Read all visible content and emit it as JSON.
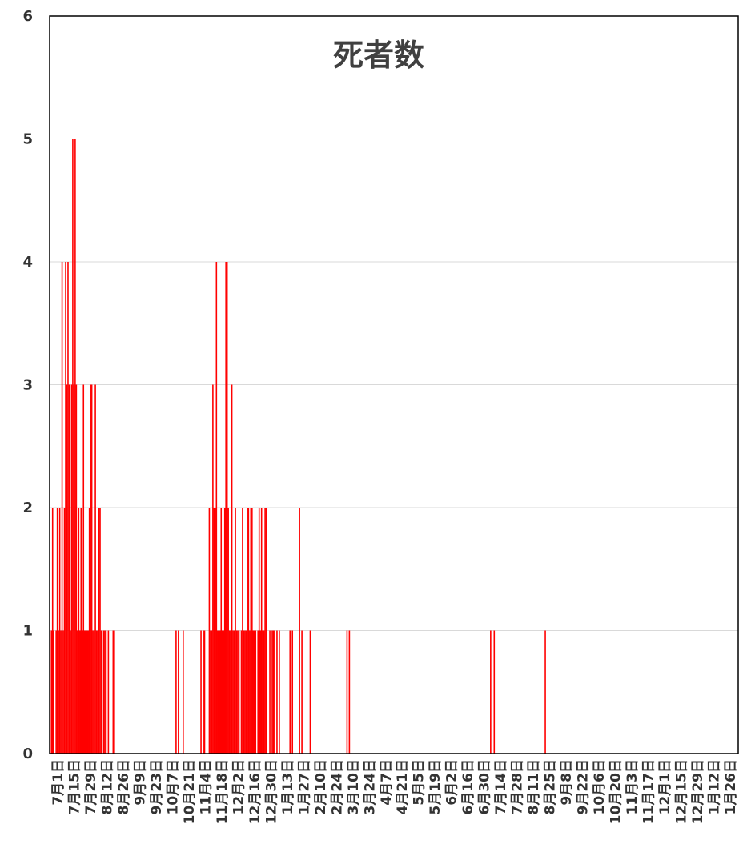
{
  "chart_data": {
    "type": "bar",
    "title": "死者数",
    "xlabel": "",
    "ylabel": "",
    "ylim": [
      0,
      6
    ],
    "yticks": [
      0,
      1,
      2,
      3,
      4,
      5,
      6
    ],
    "grid": true,
    "legend": "none",
    "series_color": "#ff0000",
    "grid_color": "#d9d9d9",
    "date_range": [
      "2020-07-01",
      "2022-01-31"
    ],
    "xtick_labels": [
      "7月1日",
      "7月15日",
      "7月29日",
      "8月12日",
      "8月26日",
      "9月9日",
      "9月23日",
      "10月7日",
      "10月21日",
      "11月4日",
      "11月18日",
      "12月2日",
      "12月16日",
      "12月30日",
      "1月13日",
      "1月27日",
      "2月10日",
      "2月24日",
      "3月10日",
      "3月24日",
      "4月7日",
      "4月21日",
      "5月5日",
      "5月19日",
      "6月2日",
      "6月16日",
      "6月30日",
      "7月14日",
      "7月28日",
      "8月11日",
      "8月25日",
      "9月8日",
      "9月22日",
      "10月6日",
      "10月20日",
      "11月3日",
      "11月17日",
      "12月1日",
      "12月15日",
      "12月29日",
      "1月12日",
      "1月26日"
    ],
    "points": [
      {
        "date": "2020-07-02",
        "value": 1
      },
      {
        "date": "2020-07-03",
        "value": 2
      },
      {
        "date": "2020-07-04",
        "value": 1
      },
      {
        "date": "2020-07-06",
        "value": 1
      },
      {
        "date": "2020-07-07",
        "value": 2
      },
      {
        "date": "2020-07-08",
        "value": 1
      },
      {
        "date": "2020-07-09",
        "value": 2
      },
      {
        "date": "2020-07-10",
        "value": 1
      },
      {
        "date": "2020-07-11",
        "value": 4
      },
      {
        "date": "2020-07-12",
        "value": 1
      },
      {
        "date": "2020-07-13",
        "value": 2
      },
      {
        "date": "2020-07-14",
        "value": 4
      },
      {
        "date": "2020-07-15",
        "value": 3
      },
      {
        "date": "2020-07-16",
        "value": 4
      },
      {
        "date": "2020-07-17",
        "value": 3
      },
      {
        "date": "2020-07-18",
        "value": 1
      },
      {
        "date": "2020-07-19",
        "value": 3
      },
      {
        "date": "2020-07-20",
        "value": 5
      },
      {
        "date": "2020-07-21",
        "value": 3
      },
      {
        "date": "2020-07-22",
        "value": 5
      },
      {
        "date": "2020-07-23",
        "value": 3
      },
      {
        "date": "2020-07-24",
        "value": 1
      },
      {
        "date": "2020-07-25",
        "value": 2
      },
      {
        "date": "2020-07-26",
        "value": 1
      },
      {
        "date": "2020-07-27",
        "value": 2
      },
      {
        "date": "2020-07-28",
        "value": 1
      },
      {
        "date": "2020-07-29",
        "value": 3
      },
      {
        "date": "2020-07-30",
        "value": 1
      },
      {
        "date": "2020-07-31",
        "value": 1
      },
      {
        "date": "2020-08-01",
        "value": 1
      },
      {
        "date": "2020-08-02",
        "value": 1
      },
      {
        "date": "2020-08-03",
        "value": 2
      },
      {
        "date": "2020-08-04",
        "value": 3
      },
      {
        "date": "2020-08-05",
        "value": 3
      },
      {
        "date": "2020-08-06",
        "value": 1
      },
      {
        "date": "2020-08-07",
        "value": 1
      },
      {
        "date": "2020-08-08",
        "value": 3
      },
      {
        "date": "2020-08-09",
        "value": 1
      },
      {
        "date": "2020-08-10",
        "value": 1
      },
      {
        "date": "2020-08-11",
        "value": 2
      },
      {
        "date": "2020-08-12",
        "value": 2
      },
      {
        "date": "2020-08-13",
        "value": 1
      },
      {
        "date": "2020-08-15",
        "value": 1
      },
      {
        "date": "2020-08-16",
        "value": 1
      },
      {
        "date": "2020-08-17",
        "value": 1
      },
      {
        "date": "2020-08-19",
        "value": 1
      },
      {
        "date": "2020-08-23",
        "value": 1
      },
      {
        "date": "2020-08-24",
        "value": 1
      },
      {
        "date": "2020-10-15",
        "value": 1
      },
      {
        "date": "2020-10-17",
        "value": 1
      },
      {
        "date": "2020-10-21",
        "value": 1
      },
      {
        "date": "2020-11-05",
        "value": 1
      },
      {
        "date": "2020-11-07",
        "value": 1
      },
      {
        "date": "2020-11-08",
        "value": 1
      },
      {
        "date": "2020-11-12",
        "value": 2
      },
      {
        "date": "2020-11-13",
        "value": 1
      },
      {
        "date": "2020-11-14",
        "value": 1
      },
      {
        "date": "2020-11-15",
        "value": 3
      },
      {
        "date": "2020-11-16",
        "value": 2
      },
      {
        "date": "2020-11-17",
        "value": 2
      },
      {
        "date": "2020-11-18",
        "value": 4
      },
      {
        "date": "2020-11-19",
        "value": 1
      },
      {
        "date": "2020-11-20",
        "value": 1
      },
      {
        "date": "2020-11-21",
        "value": 1
      },
      {
        "date": "2020-11-22",
        "value": 2
      },
      {
        "date": "2020-11-23",
        "value": 1
      },
      {
        "date": "2020-11-24",
        "value": 1
      },
      {
        "date": "2020-11-25",
        "value": 2
      },
      {
        "date": "2020-11-26",
        "value": 4
      },
      {
        "date": "2020-11-27",
        "value": 4
      },
      {
        "date": "2020-11-28",
        "value": 2
      },
      {
        "date": "2020-11-29",
        "value": 1
      },
      {
        "date": "2020-11-30",
        "value": 1
      },
      {
        "date": "2020-12-01",
        "value": 3
      },
      {
        "date": "2020-12-02",
        "value": 1
      },
      {
        "date": "2020-12-03",
        "value": 1
      },
      {
        "date": "2020-12-04",
        "value": 2
      },
      {
        "date": "2020-12-05",
        "value": 1
      },
      {
        "date": "2020-12-06",
        "value": 1
      },
      {
        "date": "2020-12-07",
        "value": 1
      },
      {
        "date": "2020-12-09",
        "value": 1
      },
      {
        "date": "2020-12-10",
        "value": 2
      },
      {
        "date": "2020-12-11",
        "value": 1
      },
      {
        "date": "2020-12-12",
        "value": 1
      },
      {
        "date": "2020-12-13",
        "value": 1
      },
      {
        "date": "2020-12-14",
        "value": 2
      },
      {
        "date": "2020-12-15",
        "value": 2
      },
      {
        "date": "2020-12-16",
        "value": 1
      },
      {
        "date": "2020-12-17",
        "value": 2
      },
      {
        "date": "2020-12-18",
        "value": 2
      },
      {
        "date": "2020-12-19",
        "value": 1
      },
      {
        "date": "2020-12-20",
        "value": 1
      },
      {
        "date": "2020-12-21",
        "value": 1
      },
      {
        "date": "2020-12-23",
        "value": 1
      },
      {
        "date": "2020-12-24",
        "value": 2
      },
      {
        "date": "2020-12-25",
        "value": 1
      },
      {
        "date": "2020-12-26",
        "value": 2
      },
      {
        "date": "2020-12-27",
        "value": 1
      },
      {
        "date": "2020-12-28",
        "value": 1
      },
      {
        "date": "2020-12-29",
        "value": 2
      },
      {
        "date": "2020-12-30",
        "value": 2
      },
      {
        "date": "2021-01-02",
        "value": 1
      },
      {
        "date": "2021-01-04",
        "value": 1
      },
      {
        "date": "2021-01-05",
        "value": 1
      },
      {
        "date": "2021-01-06",
        "value": 1
      },
      {
        "date": "2021-01-08",
        "value": 1
      },
      {
        "date": "2021-01-10",
        "value": 1
      },
      {
        "date": "2021-01-19",
        "value": 1
      },
      {
        "date": "2021-01-21",
        "value": 1
      },
      {
        "date": "2021-01-27",
        "value": 2
      },
      {
        "date": "2021-01-29",
        "value": 1
      },
      {
        "date": "2021-02-05",
        "value": 1
      },
      {
        "date": "2021-03-08",
        "value": 1
      },
      {
        "date": "2021-03-10",
        "value": 1
      },
      {
        "date": "2021-07-07",
        "value": 1
      },
      {
        "date": "2021-07-10",
        "value": 1
      },
      {
        "date": "2021-08-22",
        "value": 1
      }
    ]
  }
}
